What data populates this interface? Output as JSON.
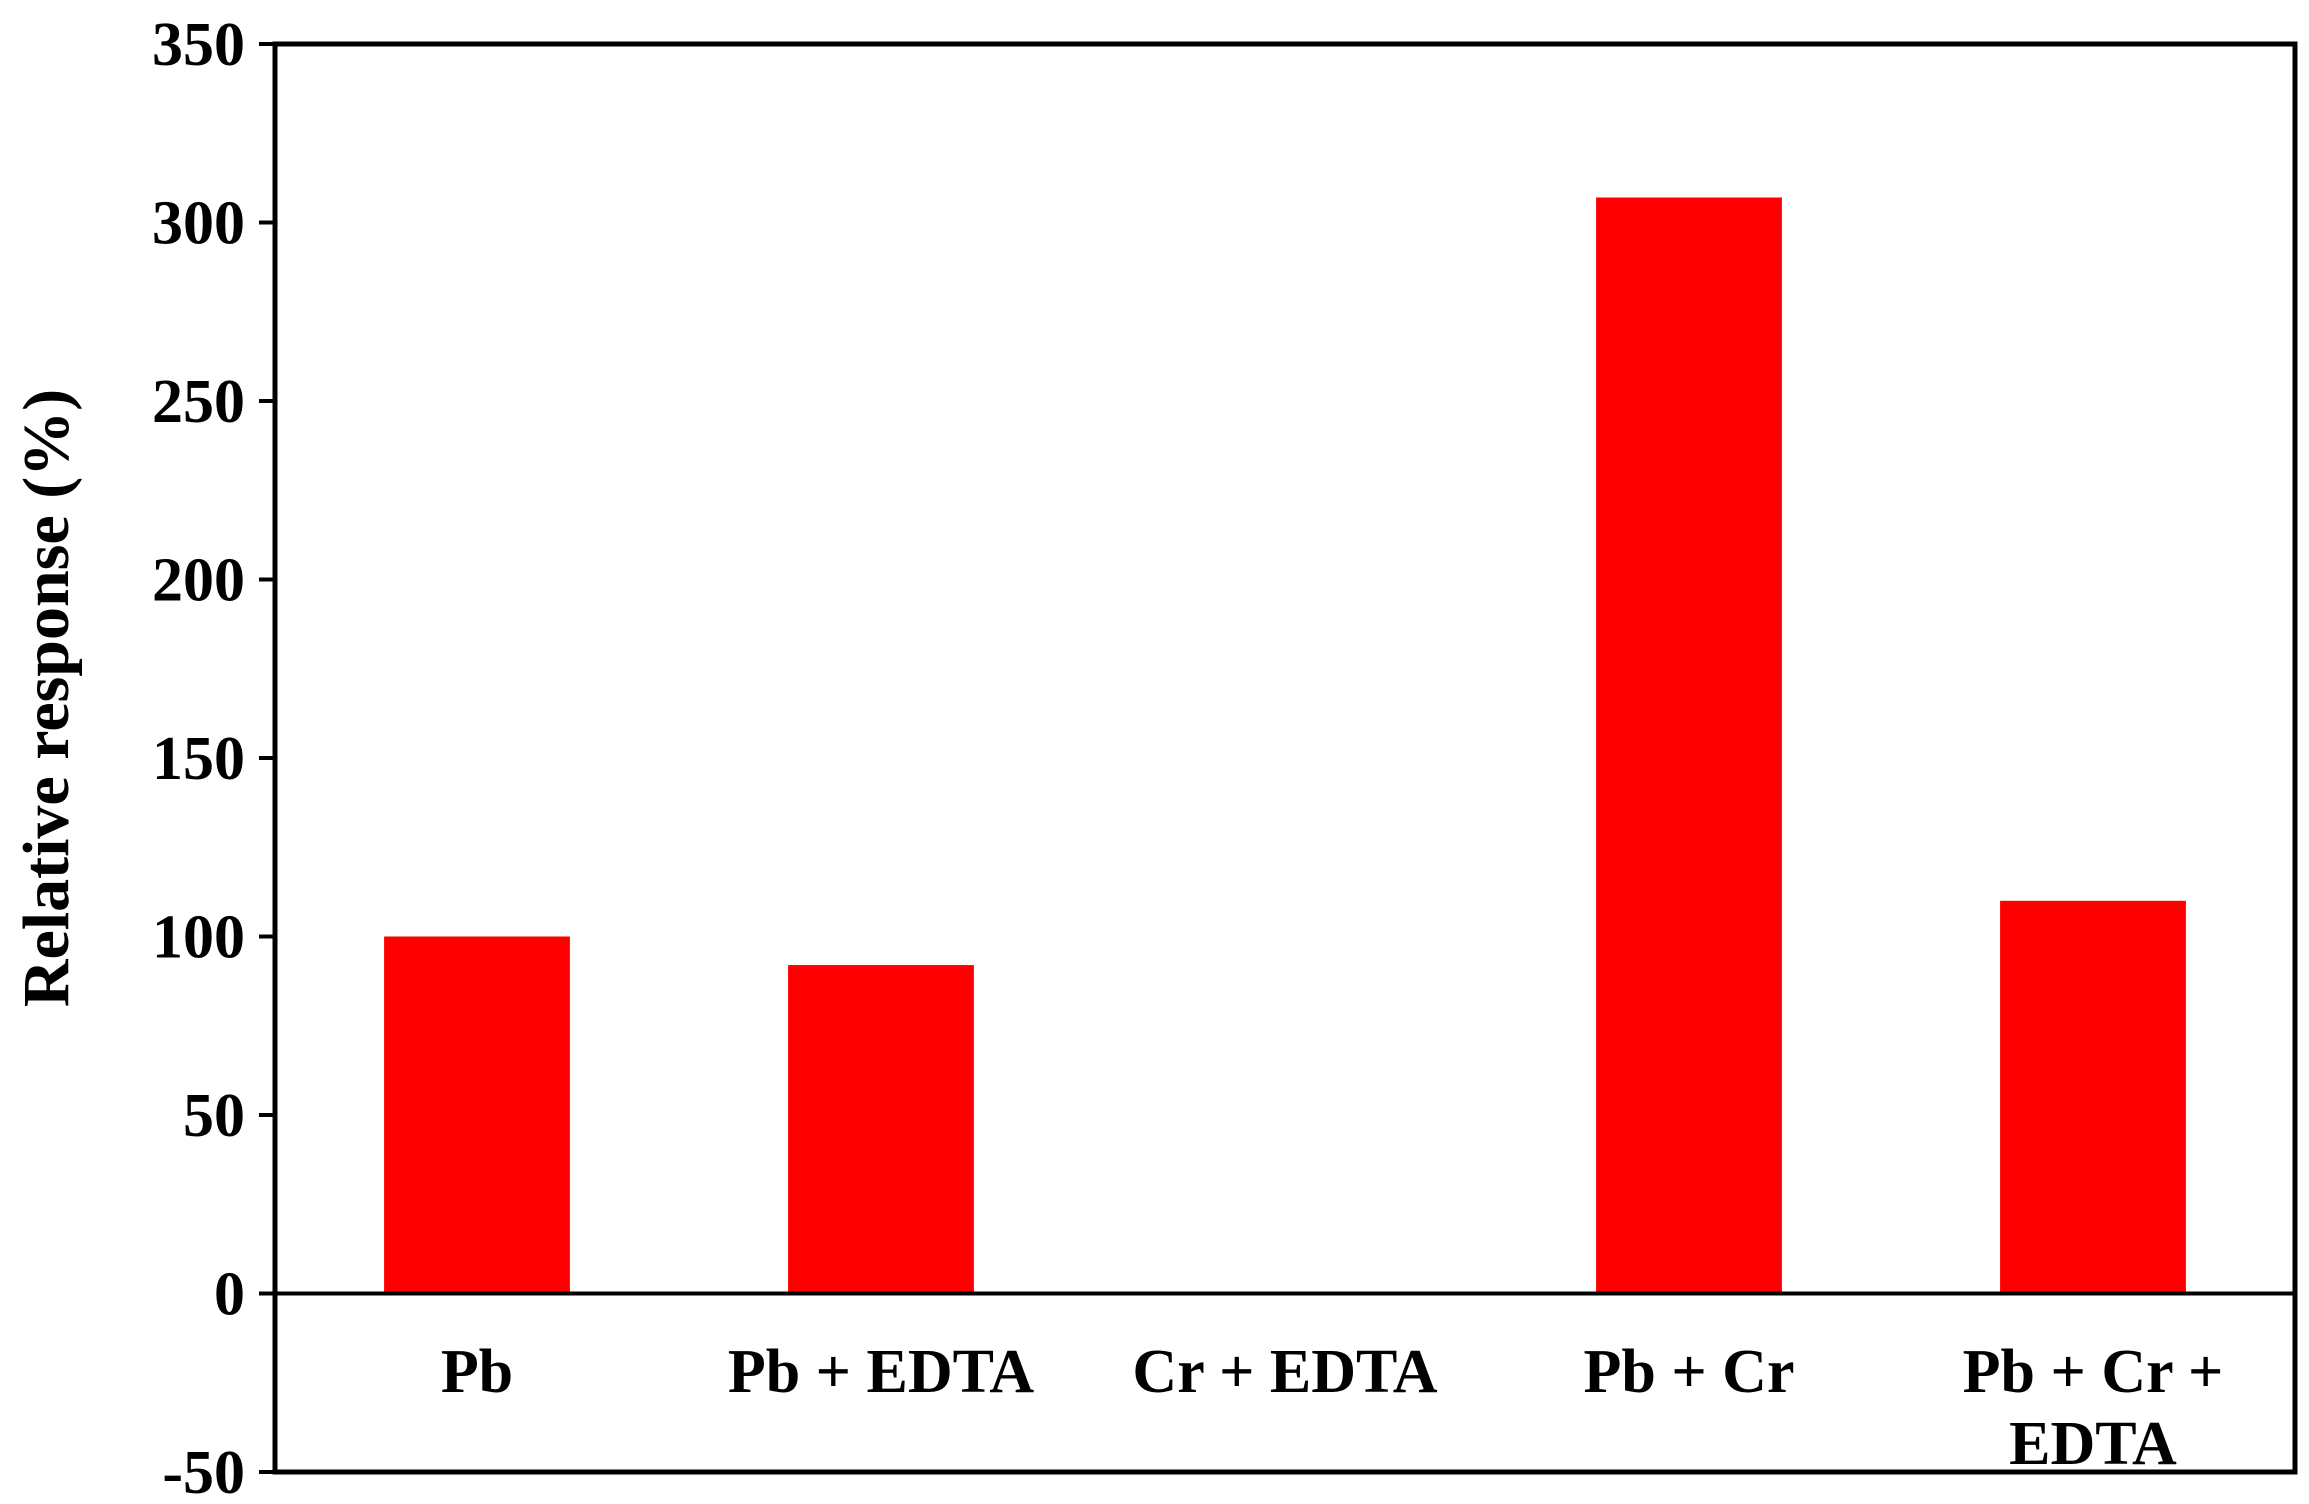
{
  "chart_data": {
    "type": "bar",
    "categories": [
      [
        "Pb"
      ],
      [
        "Pb + EDTA"
      ],
      [
        "Cr + EDTA"
      ],
      [
        "Pb + Cr"
      ],
      [
        "Pb + Cr +",
        "EDTA"
      ]
    ],
    "values": [
      100,
      92,
      0,
      307,
      110
    ],
    "title": "",
    "xlabel": "",
    "ylabel": "Relative response (%)",
    "ylim": [
      -50,
      350
    ],
    "yticks": [
      -50,
      0,
      50,
      100,
      150,
      200,
      250,
      300,
      350
    ],
    "grid": false,
    "legend": "none",
    "bar_color": "#ff0000"
  }
}
